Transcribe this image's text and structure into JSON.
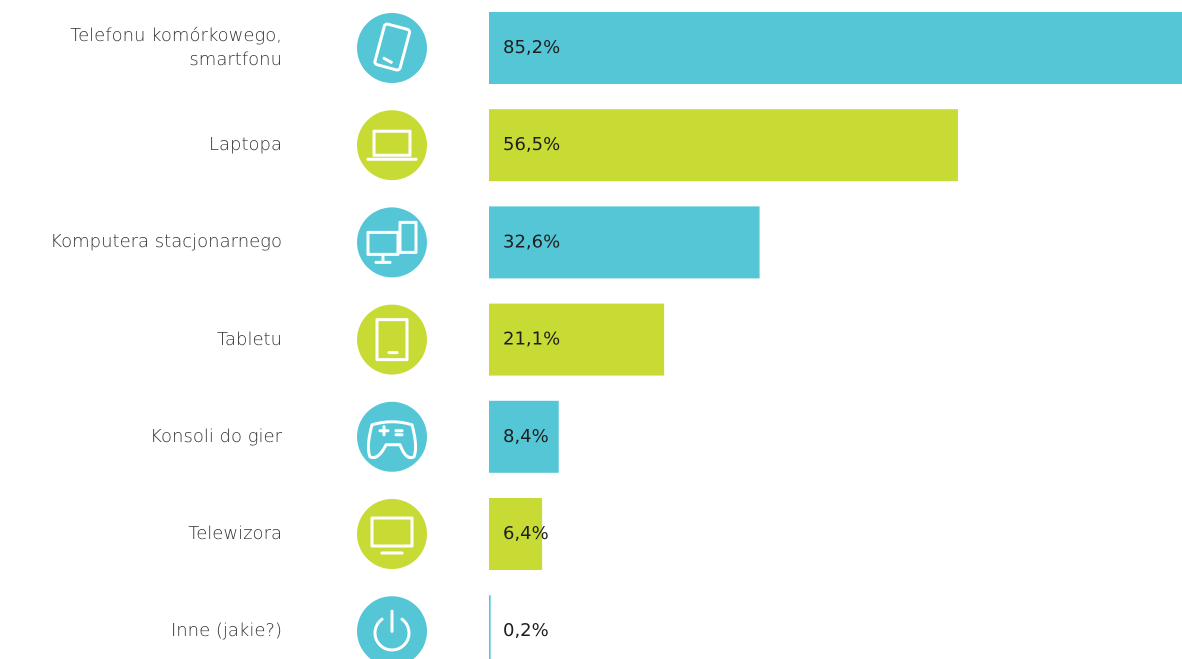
{
  "chart_data": {
    "type": "bar",
    "categories": [
      "Telefonu komórkowego, smartfonu",
      "Laptopa",
      "Komputera stacjonarnego",
      "Tabletu",
      "Konsoli do gier",
      "Telewizora",
      "Inne (jakie?)"
    ],
    "values": [
      85.2,
      56.5,
      32.6,
      21.1,
      8.4,
      6.4,
      0.2
    ],
    "value_labels": [
      "85,2%",
      "56,5%",
      "32,6%",
      "21,1%",
      "8,4%",
      "6,4%",
      "0,2%"
    ],
    "colors": [
      "#54c6d6",
      "#c8db34",
      "#54c6d6",
      "#c8db34",
      "#54c6d6",
      "#c8db34",
      "#54c6d6"
    ]
  }
}
